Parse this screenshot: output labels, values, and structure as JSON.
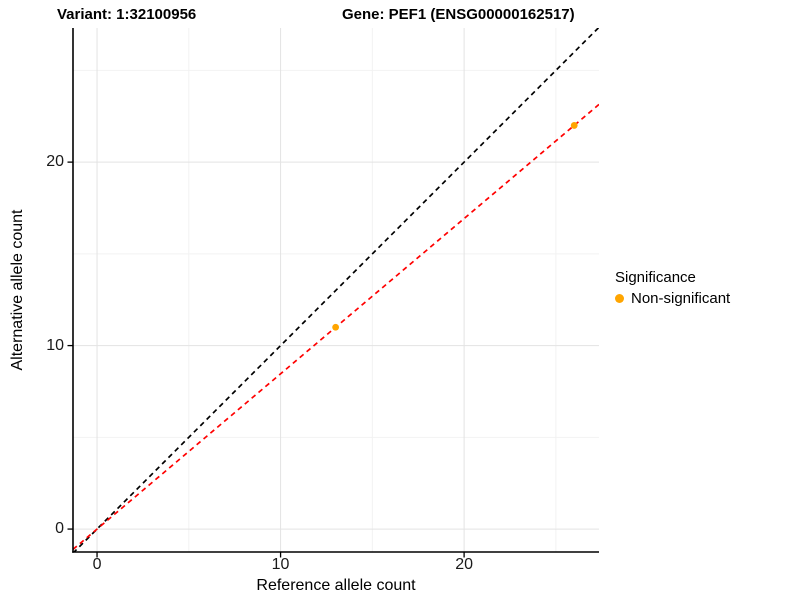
{
  "titles": {
    "variant": "Variant: 1:32100956",
    "gene": "Gene: PEF1 (ENSG00000162517)"
  },
  "axes": {
    "x_label": "Reference allele count",
    "y_label": "Alternative allele count"
  },
  "legend": {
    "title": "Significance",
    "items": [
      {
        "label": "Non-significant",
        "color": "#FFA500",
        "marker": "circle-icon"
      }
    ]
  },
  "colors": {
    "background": "#FFFFFF",
    "grid_major": "#E3E3E3",
    "grid_minor": "#F2F2F2",
    "axis_line": "#000000",
    "tick_text": "#1A1A1A",
    "point": "#FFA500",
    "identity_line": "#000000",
    "fit_line": "#FF0000"
  },
  "chart_data": {
    "type": "scatter",
    "title_left": "Variant: 1:32100956",
    "title_right": "Gene: PEF1 (ENSG00000162517)",
    "xlabel": "Reference allele count",
    "ylabel": "Alternative allele count",
    "xlim": [
      -1.31,
      27.35
    ],
    "ylim": [
      -1.25,
      27.31
    ],
    "x_ticks": [
      0,
      10,
      20
    ],
    "y_ticks": [
      0,
      10,
      20
    ],
    "x_minor_gridlines": [
      5,
      15,
      25
    ],
    "y_minor_gridlines": [
      5,
      15,
      25
    ],
    "grid": true,
    "legend_position": "right",
    "series": [
      {
        "name": "Non-significant",
        "color": "#FFA500",
        "marker": "circle",
        "points": [
          {
            "x": 13,
            "y": 11
          },
          {
            "x": 26,
            "y": 22
          }
        ]
      }
    ],
    "reference_lines": [
      {
        "name": "identity",
        "slope": 1.0,
        "intercept": 0,
        "color": "#000000",
        "style": "dashed"
      },
      {
        "name": "fit",
        "slope": 0.8462,
        "intercept": 0,
        "color": "#FF0000",
        "style": "dashed"
      }
    ]
  }
}
